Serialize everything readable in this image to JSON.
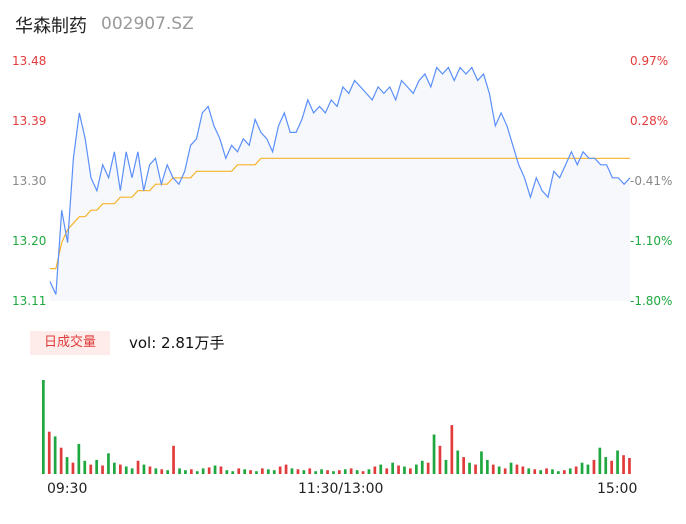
{
  "header": {
    "name": "华森制药",
    "code": "002907.SZ"
  },
  "chart_data": {
    "type": "line",
    "price_axis": {
      "ticks": [
        "13.48",
        "13.39",
        "13.30",
        "13.20",
        "13.11"
      ],
      "values": [
        13.48,
        13.39,
        13.3,
        13.2,
        13.11
      ],
      "ylim": [
        13.11,
        13.48
      ]
    },
    "pct_axis": {
      "ticks": [
        "0.97%",
        "0.28%",
        "-0.41%",
        "-1.10%",
        "-1.80%"
      ]
    },
    "x_ticks": [
      "09:30",
      "11:30/13:00",
      "15:00"
    ],
    "series": [
      {
        "values": [
          13.14,
          13.12,
          13.25,
          13.2,
          13.33,
          13.4,
          13.36,
          13.3,
          13.28,
          13.32,
          13.3,
          13.34,
          13.28,
          13.34,
          13.3,
          13.34,
          13.28,
          13.32,
          13.33,
          13.29,
          13.32,
          13.3,
          13.29,
          13.31,
          13.35,
          13.36,
          13.4,
          13.41,
          13.38,
          13.36,
          13.33,
          13.35,
          13.34,
          13.36,
          13.35,
          13.39,
          13.37,
          13.36,
          13.34,
          13.38,
          13.4,
          13.37,
          13.37,
          13.39,
          13.42,
          13.4,
          13.41,
          13.4,
          13.42,
          13.41,
          13.44,
          13.43,
          13.45,
          13.44,
          13.43,
          13.42,
          13.44,
          13.43,
          13.44,
          13.42,
          13.45,
          13.44,
          13.43,
          13.45,
          13.46,
          13.44,
          13.47,
          13.46,
          13.47,
          13.45,
          13.47,
          13.46,
          13.47,
          13.45,
          13.46,
          13.43,
          13.38,
          13.4,
          13.38,
          13.35,
          13.32,
          13.3,
          13.27,
          13.3,
          13.28,
          13.27,
          13.31,
          13.3,
          13.32,
          13.34,
          13.32,
          13.34,
          13.33,
          13.33,
          13.32,
          13.32,
          13.3,
          13.3,
          13.29,
          13.3
        ]
      },
      {
        "values": [
          13.16,
          13.16,
          13.2,
          13.22,
          13.23,
          13.24,
          13.24,
          13.25,
          13.25,
          13.26,
          13.26,
          13.26,
          13.27,
          13.27,
          13.27,
          13.28,
          13.28,
          13.28,
          13.29,
          13.29,
          13.29,
          13.3,
          13.3,
          13.3,
          13.3,
          13.31,
          13.31,
          13.31,
          13.31,
          13.31,
          13.31,
          13.31,
          13.32,
          13.32,
          13.32,
          13.32,
          13.33,
          13.33,
          13.33,
          13.33,
          13.33,
          13.33,
          13.33,
          13.33,
          13.33,
          13.33,
          13.33,
          13.33,
          13.33,
          13.33,
          13.33,
          13.33,
          13.33,
          13.33,
          13.33,
          13.33,
          13.33,
          13.33,
          13.33,
          13.33,
          13.33,
          13.33,
          13.33,
          13.33,
          13.33,
          13.33,
          13.33,
          13.33,
          13.33,
          13.33,
          13.33,
          13.33,
          13.33,
          13.33,
          13.33,
          13.33,
          13.33,
          13.33,
          13.33,
          13.33,
          13.33,
          13.33,
          13.33,
          13.33,
          13.33,
          13.33,
          13.33,
          13.33,
          13.33,
          13.33,
          13.33,
          13.33,
          13.33,
          13.33,
          13.33,
          13.33,
          13.33,
          13.33,
          13.33,
          13.33
        ]
      }
    ],
    "volume": {
      "label": "日成交量",
      "summary": "vol: 2.81万手",
      "bars": [
        {
          "v": 100,
          "c": "g"
        },
        {
          "v": 45,
          "c": "r"
        },
        {
          "v": 40,
          "c": "g"
        },
        {
          "v": 28,
          "c": "r"
        },
        {
          "v": 18,
          "c": "g"
        },
        {
          "v": 12,
          "c": "r"
        },
        {
          "v": 32,
          "c": "g"
        },
        {
          "v": 14,
          "c": "g"
        },
        {
          "v": 10,
          "c": "r"
        },
        {
          "v": 15,
          "c": "g"
        },
        {
          "v": 9,
          "c": "r"
        },
        {
          "v": 22,
          "c": "g"
        },
        {
          "v": 12,
          "c": "g"
        },
        {
          "v": 10,
          "c": "r"
        },
        {
          "v": 8,
          "c": "g"
        },
        {
          "v": 6,
          "c": "g"
        },
        {
          "v": 14,
          "c": "r"
        },
        {
          "v": 10,
          "c": "g"
        },
        {
          "v": 8,
          "c": "r"
        },
        {
          "v": 6,
          "c": "g"
        },
        {
          "v": 5,
          "c": "r"
        },
        {
          "v": 4,
          "c": "g"
        },
        {
          "v": 30,
          "c": "r"
        },
        {
          "v": 6,
          "c": "g"
        },
        {
          "v": 4,
          "c": "g"
        },
        {
          "v": 5,
          "c": "r"
        },
        {
          "v": 3,
          "c": "g"
        },
        {
          "v": 6,
          "c": "g"
        },
        {
          "v": 7,
          "c": "r"
        },
        {
          "v": 9,
          "c": "g"
        },
        {
          "v": 8,
          "c": "r"
        },
        {
          "v": 4,
          "c": "g"
        },
        {
          "v": 3,
          "c": "g"
        },
        {
          "v": 6,
          "c": "r"
        },
        {
          "v": 5,
          "c": "g"
        },
        {
          "v": 4,
          "c": "r"
        },
        {
          "v": 3,
          "c": "g"
        },
        {
          "v": 6,
          "c": "r"
        },
        {
          "v": 5,
          "c": "g"
        },
        {
          "v": 4,
          "c": "g"
        },
        {
          "v": 8,
          "c": "r"
        },
        {
          "v": 10,
          "c": "r"
        },
        {
          "v": 6,
          "c": "g"
        },
        {
          "v": 5,
          "c": "r"
        },
        {
          "v": 4,
          "c": "g"
        },
        {
          "v": 6,
          "c": "r"
        },
        {
          "v": 3,
          "c": "g"
        },
        {
          "v": 5,
          "c": "g"
        },
        {
          "v": 4,
          "c": "r"
        },
        {
          "v": 3,
          "c": "g"
        },
        {
          "v": 4,
          "c": "r"
        },
        {
          "v": 5,
          "c": "g"
        },
        {
          "v": 6,
          "c": "r"
        },
        {
          "v": 4,
          "c": "g"
        },
        {
          "v": 3,
          "c": "r"
        },
        {
          "v": 5,
          "c": "g"
        },
        {
          "v": 8,
          "c": "r"
        },
        {
          "v": 10,
          "c": "g"
        },
        {
          "v": 6,
          "c": "r"
        },
        {
          "v": 12,
          "c": "g"
        },
        {
          "v": 9,
          "c": "r"
        },
        {
          "v": 8,
          "c": "g"
        },
        {
          "v": 6,
          "c": "r"
        },
        {
          "v": 10,
          "c": "g"
        },
        {
          "v": 14,
          "c": "g"
        },
        {
          "v": 12,
          "c": "r"
        },
        {
          "v": 42,
          "c": "g"
        },
        {
          "v": 30,
          "c": "r"
        },
        {
          "v": 15,
          "c": "g"
        },
        {
          "v": 52,
          "c": "r"
        },
        {
          "v": 25,
          "c": "g"
        },
        {
          "v": 18,
          "c": "r"
        },
        {
          "v": 12,
          "c": "g"
        },
        {
          "v": 10,
          "c": "r"
        },
        {
          "v": 24,
          "c": "g"
        },
        {
          "v": 15,
          "c": "g"
        },
        {
          "v": 10,
          "c": "r"
        },
        {
          "v": 8,
          "c": "g"
        },
        {
          "v": 6,
          "c": "r"
        },
        {
          "v": 12,
          "c": "g"
        },
        {
          "v": 10,
          "c": "r"
        },
        {
          "v": 8,
          "c": "r"
        },
        {
          "v": 6,
          "c": "g"
        },
        {
          "v": 5,
          "c": "r"
        },
        {
          "v": 4,
          "c": "g"
        },
        {
          "v": 6,
          "c": "r"
        },
        {
          "v": 5,
          "c": "g"
        },
        {
          "v": 3,
          "c": "g"
        },
        {
          "v": 4,
          "c": "r"
        },
        {
          "v": 6,
          "c": "g"
        },
        {
          "v": 8,
          "c": "r"
        },
        {
          "v": 12,
          "c": "g"
        },
        {
          "v": 10,
          "c": "g"
        },
        {
          "v": 15,
          "c": "r"
        },
        {
          "v": 28,
          "c": "g"
        },
        {
          "v": 18,
          "c": "g"
        },
        {
          "v": 14,
          "c": "r"
        },
        {
          "v": 25,
          "c": "g"
        },
        {
          "v": 20,
          "c": "r"
        },
        {
          "v": 17,
          "c": "r"
        }
      ]
    }
  },
  "colors": {
    "price_line": "#5b8ff9",
    "price_fill": "#f6f8fc",
    "avg_line": "#f7b32b",
    "up": "#e23b3b",
    "down": "#1fa83f",
    "neutral": "#888888"
  }
}
